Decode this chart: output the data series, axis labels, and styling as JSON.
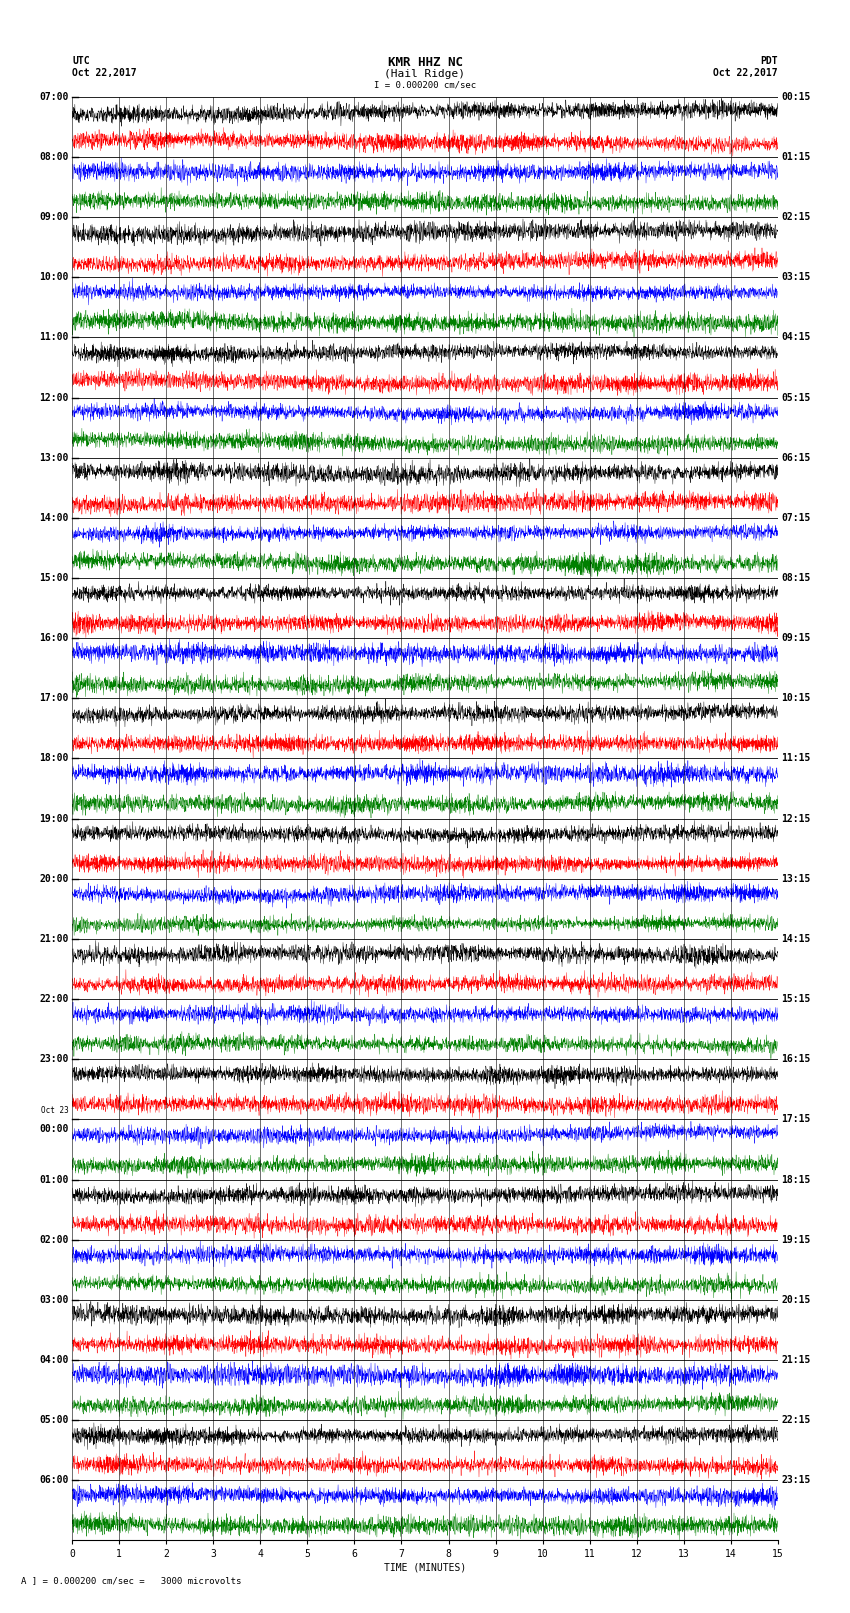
{
  "title_line1": "KMR HHZ NC",
  "title_line2": "(Hail Ridge)",
  "title_scale": "I = 0.000200 cm/sec",
  "label_utc": "UTC",
  "label_pdt": "PDT",
  "date_left": "Oct 22,2017",
  "date_right": "Oct 22,2017",
  "xlabel": "TIME (MINUTES)",
  "scale_label": "A ] = 0.000200 cm/sec =   3000 microvolts",
  "left_times": [
    "07:00",
    "08:00",
    "09:00",
    "10:00",
    "11:00",
    "12:00",
    "13:00",
    "14:00",
    "15:00",
    "16:00",
    "17:00",
    "18:00",
    "19:00",
    "20:00",
    "21:00",
    "22:00",
    "23:00",
    "Oct 23\n00:00",
    "01:00",
    "02:00",
    "03:00",
    "04:00",
    "05:00",
    "06:00"
  ],
  "right_times": [
    "00:15",
    "01:15",
    "02:15",
    "03:15",
    "04:15",
    "05:15",
    "06:15",
    "07:15",
    "08:15",
    "09:15",
    "10:15",
    "11:15",
    "12:15",
    "13:15",
    "14:15",
    "15:15",
    "16:15",
    "17:15",
    "18:15",
    "19:15",
    "20:15",
    "21:15",
    "22:15",
    "23:15"
  ],
  "n_rows": 48,
  "n_cols": 3000,
  "xmin": 0,
  "xmax": 15,
  "xticks": [
    0,
    1,
    2,
    3,
    4,
    5,
    6,
    7,
    8,
    9,
    10,
    11,
    12,
    13,
    14,
    15
  ],
  "colors": [
    "black",
    "red",
    "blue",
    "green",
    "black",
    "red",
    "blue",
    "green"
  ],
  "bg_color": "white",
  "figwidth": 8.5,
  "figheight": 16.13,
  "dpi": 100,
  "amplitude": 0.48,
  "font_size_title": 9,
  "font_size_labels": 7,
  "font_size_ticks": 7,
  "font_size_axis": 7,
  "lw": 0.3
}
